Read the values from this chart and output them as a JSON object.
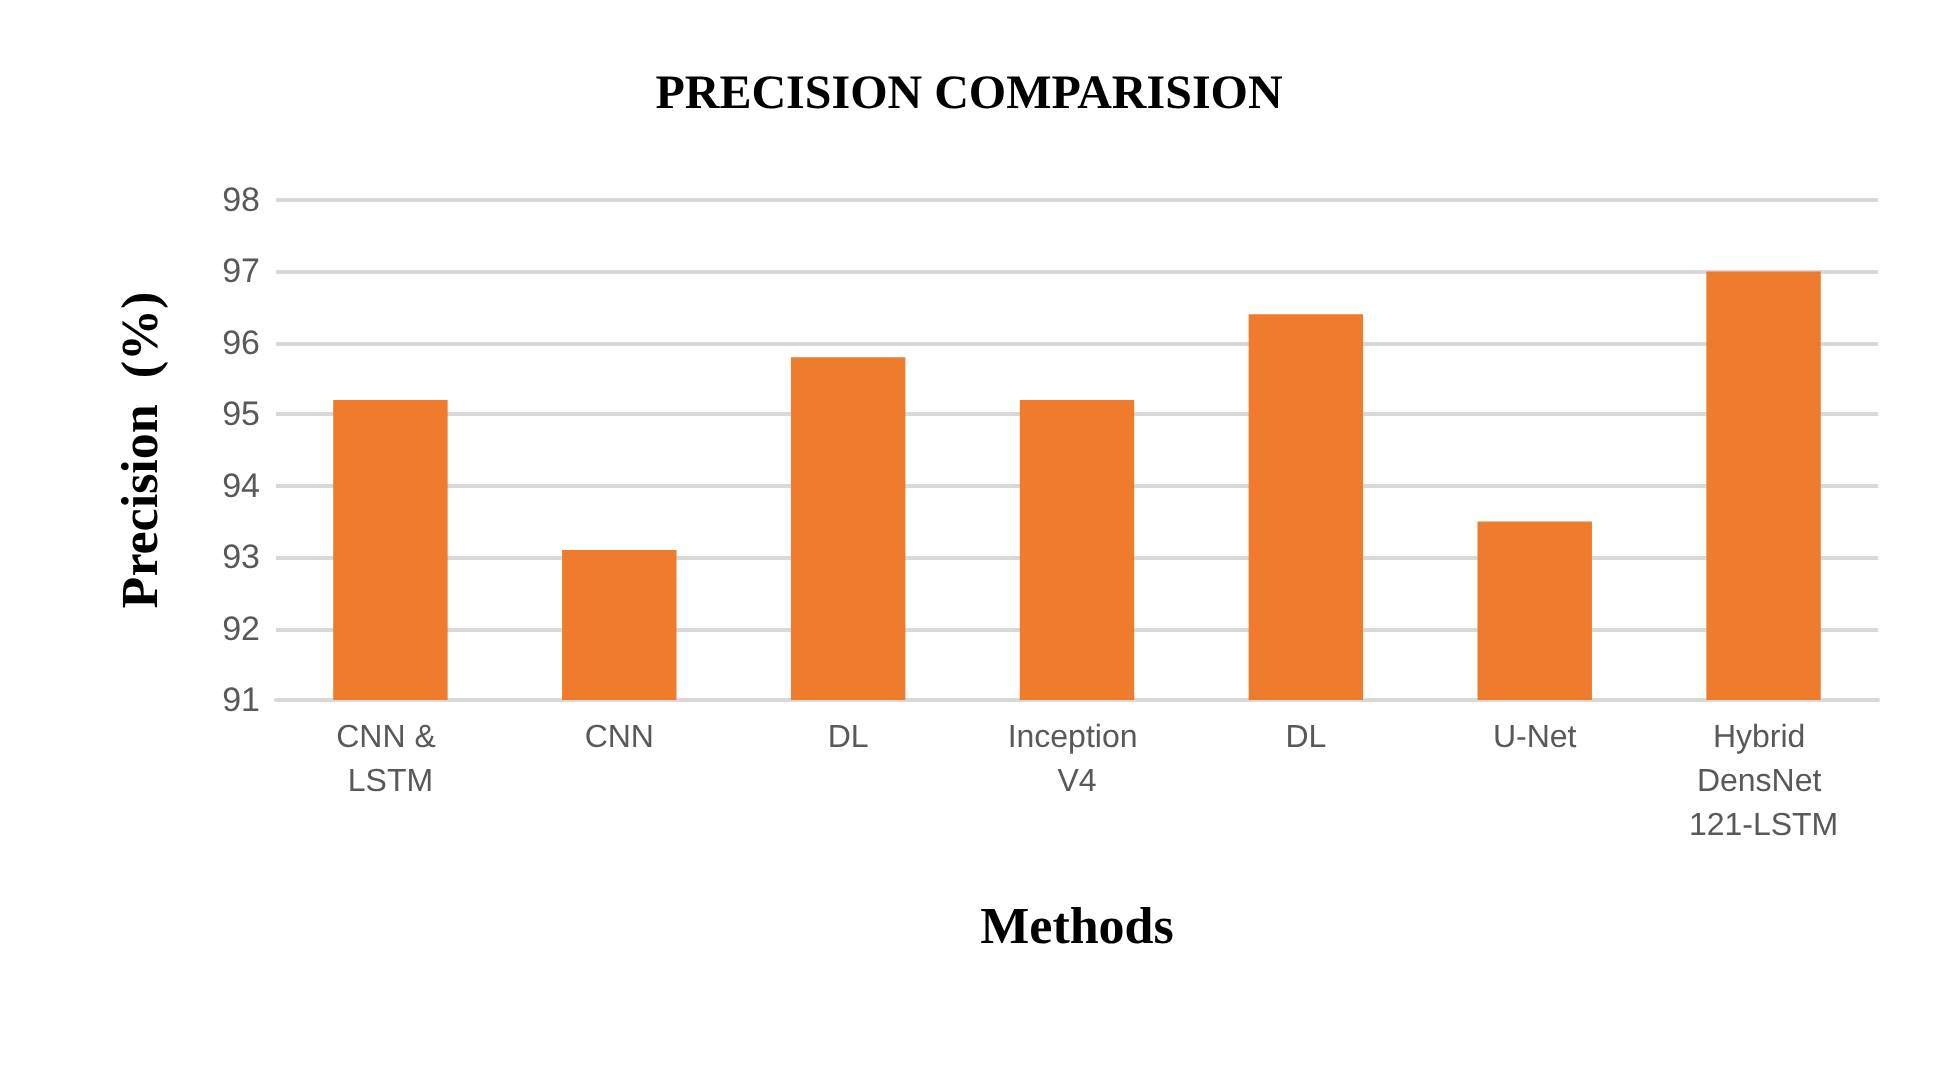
{
  "chart_data": {
    "type": "bar",
    "title": "PRECISION COMPARISION",
    "xlabel": "Methods",
    "ylabel": "Precision  (%)",
    "categories": [
      "CNN & LSTM",
      "CNN",
      "DL",
      "Inception V4",
      "DL",
      "U-Net",
      "Hybrid DensNet 121-LSTM"
    ],
    "values": [
      95.2,
      93.1,
      95.8,
      95.2,
      96.4,
      93.5,
      97.0
    ],
    "color": "#ef7b2c",
    "ylim": [
      91,
      98
    ],
    "yticks": [
      91,
      92,
      93,
      94,
      95,
      96,
      97,
      98
    ],
    "grid": "y"
  }
}
